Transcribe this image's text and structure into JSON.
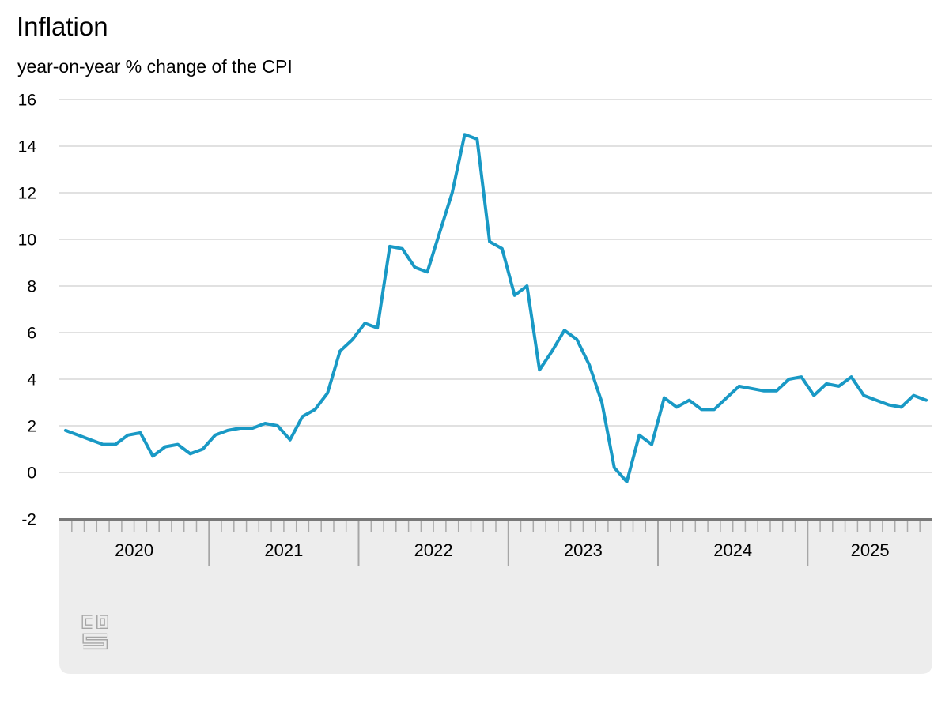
{
  "page": {
    "title": "Inflation",
    "subtitle": "year-on-year % change of the CPI"
  },
  "branding": {
    "logo": "cbs-logo"
  },
  "chart_data": {
    "type": "line",
    "title": "Inflation",
    "subtitle": "year-on-year % change of the CPI",
    "unit": "%",
    "series_name": "CPI year-on-year % change",
    "line_color": "#1999c5",
    "grid": "horizontal",
    "legend": "none",
    "x_axis": {
      "interval": "monthly",
      "start": "2020-01",
      "end": "2025-10",
      "years": [
        "2020",
        "2021",
        "2022",
        "2023",
        "2024",
        "2025"
      ]
    },
    "y_axis": {
      "ticks": [
        16,
        14,
        12,
        10,
        8,
        6,
        4,
        2,
        0,
        -2
      ],
      "min": -2,
      "max": 16
    },
    "values": [
      1.8,
      1.6,
      1.4,
      1.2,
      1.2,
      1.6,
      1.7,
      0.7,
      1.1,
      1.2,
      0.8,
      1.0,
      1.6,
      1.8,
      1.9,
      1.9,
      2.1,
      2.0,
      1.4,
      2.4,
      2.7,
      3.4,
      5.2,
      5.7,
      6.4,
      6.2,
      9.7,
      9.6,
      8.8,
      8.6,
      10.3,
      12.0,
      14.5,
      14.3,
      9.9,
      9.6,
      7.6,
      8.0,
      4.4,
      5.2,
      6.1,
      5.7,
      4.6,
      3.0,
      0.2,
      -0.4,
      1.6,
      1.2,
      3.2,
      2.8,
      3.1,
      2.7,
      2.7,
      3.2,
      3.7,
      3.6,
      3.5,
      3.5,
      4.0,
      4.1,
      3.3,
      3.8,
      3.7,
      4.1,
      3.3,
      3.1,
      2.9,
      2.8,
      3.3,
      3.1
    ]
  }
}
